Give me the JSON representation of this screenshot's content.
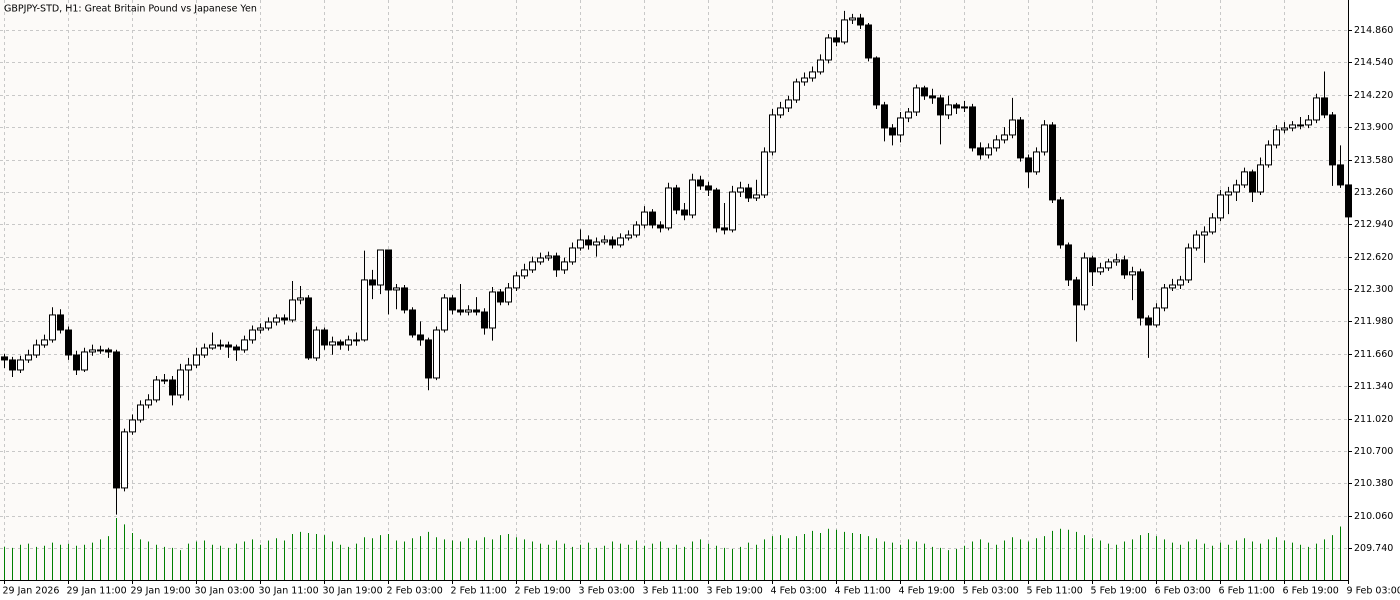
{
  "chart_data": {
    "type": "candlestick",
    "title": "GBPJPY-STD, H1:  Great Britain Pound vs Japanese Yen",
    "categories": [
      "29 Jan 2026",
      null,
      null,
      null,
      null,
      null,
      null,
      null,
      "29 Jan 11:00",
      null,
      null,
      null,
      null,
      null,
      null,
      null,
      "29 Jan 19:00",
      null,
      null,
      null,
      null,
      null,
      null,
      null,
      "30 Jan 03:00",
      null,
      null,
      null,
      null,
      null,
      null,
      null,
      "30 Jan 11:00",
      null,
      null,
      null,
      null,
      null,
      null,
      null,
      "30 Jan 19:00",
      null,
      null,
      null,
      null,
      null,
      null,
      null,
      "2 Feb 03:00",
      null,
      null,
      null,
      null,
      null,
      null,
      null,
      "2 Feb 11:00",
      null,
      null,
      null,
      null,
      null,
      null,
      null,
      "2 Feb 19:00",
      null,
      null,
      null,
      null,
      null,
      null,
      null,
      "3 Feb 03:00",
      null,
      null,
      null,
      null,
      null,
      null,
      null,
      "3 Feb 11:00",
      null,
      null,
      null,
      null,
      null,
      null,
      null,
      "3 Feb 19:00",
      null,
      null,
      null,
      null,
      null,
      null,
      null,
      "4 Feb 03:00",
      null,
      null,
      null,
      null,
      null,
      null,
      null,
      "4 Feb 11:00",
      null,
      null,
      null,
      null,
      null,
      null,
      null,
      "4 Feb 19:00",
      null,
      null,
      null,
      null,
      null,
      null,
      null,
      "5 Feb 03:00",
      null,
      null,
      null,
      null,
      null,
      null,
      null,
      "5 Feb 11:00",
      null,
      null,
      null,
      null,
      null,
      null,
      null,
      "5 Feb 19:00",
      null,
      null,
      null,
      null,
      null,
      null,
      null,
      "6 Feb 03:00",
      null,
      null,
      null,
      null,
      null,
      null,
      null,
      "6 Feb 11:00",
      null,
      null,
      null,
      null,
      null,
      null,
      null,
      "6 Feb 19:00",
      null,
      null,
      null,
      null,
      null,
      null,
      null,
      "9 Feb 03:00"
    ],
    "open": [
      211.629,
      211.599,
      211.5,
      211.599,
      211.648,
      211.747,
      211.797,
      212.044,
      211.895,
      211.648,
      211.5,
      211.678,
      211.698,
      211.698,
      211.678,
      210.334,
      210.888,
      211.006,
      211.154,
      211.204,
      211.401,
      211.401,
      211.253,
      211.5,
      211.549,
      211.648,
      211.717,
      211.747,
      211.747,
      211.727,
      211.698,
      211.797,
      211.895,
      211.915,
      211.974,
      212.014,
      211.994,
      212.192,
      212.212,
      211.619,
      211.895,
      211.747,
      211.777,
      211.747,
      211.797,
      211.797,
      212.39,
      212.34,
      212.686,
      212.291,
      212.311,
      212.093,
      211.846,
      211.797,
      211.421,
      211.895,
      212.212,
      212.093,
      212.073,
      212.093,
      212.073,
      211.915,
      212.271,
      212.172,
      212.311,
      212.43,
      212.489,
      212.568,
      212.607,
      212.627,
      212.489,
      212.568,
      212.706,
      212.785,
      212.736,
      212.765,
      212.785,
      212.736,
      212.805,
      212.834,
      212.933,
      213.061,
      212.933,
      212.904,
      213.299,
      213.081,
      213.032,
      213.378,
      213.319,
      213.279,
      212.904,
      212.884,
      213.259,
      213.299,
      213.2,
      213.23,
      213.655,
      214.021,
      214.09,
      214.169,
      214.347,
      214.386,
      214.446,
      214.564,
      214.782,
      214.742,
      214.96,
      214.979,
      214.91,
      214.584,
      214.12,
      213.892,
      213.823,
      213.991,
      214.05,
      214.288,
      214.209,
      214.189,
      214.021,
      214.12,
      214.09,
      214.1,
      213.695,
      213.626,
      213.695,
      213.774,
      213.823,
      213.971,
      213.596,
      213.458,
      213.655,
      213.922,
      213.181,
      212.736,
      212.39,
      212.143,
      212.607,
      212.47,
      212.509,
      212.568,
      212.588,
      212.44,
      212.47,
      212.014,
      211.945,
      212.113,
      212.311,
      212.34,
      212.39,
      212.706,
      212.834,
      212.864,
      213.003,
      213.23,
      213.259,
      213.329,
      213.458,
      213.259,
      213.527,
      213.724,
      213.873,
      213.892,
      213.922,
      213.922,
      213.971,
      214.189,
      214.021,
      213.527,
      213.329
    ],
    "high": [
      211.66,
      211.63,
      211.64,
      211.7,
      211.8,
      211.85,
      212.12,
      212.1,
      211.93,
      211.69,
      211.72,
      211.75,
      211.74,
      211.72,
      211.7,
      210.92,
      211.06,
      211.2,
      211.26,
      211.44,
      211.46,
      211.44,
      211.56,
      211.62,
      211.72,
      211.76,
      211.87,
      211.8,
      211.78,
      211.75,
      211.84,
      211.94,
      211.96,
      212.02,
      212.05,
      212.05,
      212.38,
      212.33,
      212.24,
      211.93,
      211.92,
      211.83,
      211.8,
      211.84,
      211.87,
      212.68,
      212.49,
      212.69,
      212.69,
      212.35,
      212.34,
      212.12,
      211.98,
      211.82,
      211.93,
      212.25,
      212.24,
      212.35,
      212.14,
      212.22,
      212.11,
      212.32,
      212.3,
      212.36,
      212.47,
      212.55,
      212.62,
      212.66,
      212.67,
      212.66,
      212.61,
      212.76,
      212.89,
      212.83,
      212.81,
      212.83,
      212.82,
      212.85,
      212.88,
      212.97,
      213.12,
      213.09,
      212.97,
      213.35,
      213.33,
      213.15,
      213.44,
      213.42,
      213.36,
      213.3,
      213.15,
      213.32,
      213.36,
      213.34,
      213.38,
      213.7,
      214.08,
      214.15,
      214.21,
      214.38,
      214.44,
      214.5,
      214.62,
      214.82,
      214.86,
      215.05,
      215.02,
      215.02,
      214.93,
      214.6,
      214.15,
      213.93,
      214.05,
      214.09,
      214.32,
      214.31,
      214.28,
      214.22,
      214.21,
      214.14,
      214.16,
      214.13,
      213.75,
      213.74,
      213.82,
      213.9,
      214.19,
      214,
      213.63,
      213.7,
      213.97,
      213.95,
      213.21,
      212.76,
      212.42,
      212.66,
      212.63,
      212.56,
      212.6,
      212.65,
      212.63,
      212.52,
      212.5,
      212.04,
      212.16,
      212.35,
      212.4,
      212.43,
      212.75,
      212.88,
      212.92,
      213.05,
      213.28,
      213.31,
      213.38,
      213.5,
      213.48,
      213.6,
      213.77,
      213.92,
      213.95,
      213.96,
      214,
      214.02,
      214.23,
      214.45,
      214.05,
      213.72,
      213.36
    ],
    "low": [
      211.52,
      211.43,
      211.47,
      211.57,
      211.62,
      211.72,
      211.77,
      211.86,
      211.6,
      211.45,
      211.48,
      211.64,
      211.66,
      211.62,
      210.07,
      210.3,
      210.86,
      210.98,
      211.12,
      211.18,
      211.36,
      211.15,
      211.22,
      211.2,
      211.52,
      211.62,
      211.7,
      211.7,
      211.62,
      211.59,
      211.67,
      211.76,
      211.86,
      211.89,
      211.94,
      211.95,
      211.97,
      212.15,
      211.6,
      211.59,
      211.7,
      211.65,
      211.7,
      211.69,
      211.74,
      211.78,
      212.2,
      212.25,
      212.05,
      212.1,
      212.06,
      211.82,
      211.74,
      211.3,
      211.4,
      211.87,
      212.05,
      212.04,
      212.04,
      212.04,
      211.85,
      211.79,
      212.14,
      212.14,
      212.28,
      212.4,
      212.46,
      212.54,
      212.58,
      212.42,
      212.45,
      212.54,
      212.68,
      212.69,
      212.62,
      212.74,
      212.7,
      212.71,
      212.78,
      212.81,
      212.9,
      212.9,
      212.86,
      212.88,
      213.04,
      212.98,
      213,
      213.28,
      213.22,
      212.86,
      212.84,
      212.86,
      213.21,
      213.16,
      213.17,
      213.2,
      213.62,
      213.99,
      214.05,
      214.14,
      214.31,
      214.35,
      214.42,
      214.53,
      214.7,
      214.72,
      214.92,
      214.87,
      214.55,
      214.08,
      213.76,
      213.72,
      213.75,
      213.95,
      214.01,
      214.17,
      214.13,
      213.73,
      213.98,
      214.03,
      214.05,
      213.66,
      213.58,
      213.59,
      213.66,
      213.74,
      213.79,
      213.56,
      213.3,
      213.43,
      213.62,
      213.15,
      212.7,
      212.33,
      211.78,
      212.09,
      212.33,
      212.44,
      212.48,
      212.53,
      212.4,
      212.19,
      211.94,
      211.62,
      211.92,
      212.08,
      212.28,
      212.3,
      212.36,
      212.68,
      212.56,
      212.84,
      212.97,
      213.04,
      213.17,
      213.3,
      213.16,
      213.23,
      213.5,
      213.69,
      213.84,
      213.86,
      213.88,
      213.89,
      213.94,
      213.99,
      213.32,
      213.3,
      212.98
    ],
    "close": [
      211.599,
      211.5,
      211.599,
      211.648,
      211.747,
      211.797,
      212.044,
      211.895,
      211.648,
      211.5,
      211.678,
      211.698,
      211.698,
      211.678,
      210.334,
      210.888,
      211.006,
      211.154,
      211.204,
      211.401,
      211.401,
      211.253,
      211.5,
      211.549,
      211.648,
      211.717,
      211.747,
      211.747,
      211.727,
      211.698,
      211.797,
      211.895,
      211.915,
      211.974,
      212.014,
      211.994,
      212.192,
      212.212,
      211.619,
      211.895,
      211.747,
      211.777,
      211.747,
      211.797,
      211.797,
      212.39,
      212.34,
      212.686,
      212.291,
      212.311,
      212.093,
      211.846,
      211.797,
      211.421,
      211.895,
      212.212,
      212.093,
      212.073,
      212.093,
      212.073,
      211.915,
      212.271,
      212.172,
      212.311,
      212.43,
      212.489,
      212.568,
      212.607,
      212.627,
      212.489,
      212.568,
      212.706,
      212.785,
      212.736,
      212.765,
      212.785,
      212.736,
      212.805,
      212.834,
      212.933,
      213.061,
      212.933,
      212.904,
      213.299,
      213.081,
      213.032,
      213.378,
      213.319,
      213.279,
      212.904,
      212.884,
      213.259,
      213.299,
      213.2,
      213.23,
      213.655,
      214.021,
      214.09,
      214.169,
      214.347,
      214.386,
      214.446,
      214.564,
      214.782,
      214.742,
      214.96,
      214.979,
      214.91,
      214.584,
      214.12,
      213.892,
      213.823,
      213.991,
      214.05,
      214.288,
      214.209,
      214.189,
      214.021,
      214.12,
      214.09,
      214.1,
      213.695,
      213.626,
      213.695,
      213.774,
      213.823,
      213.971,
      213.596,
      213.458,
      213.655,
      213.922,
      213.181,
      212.736,
      212.39,
      212.143,
      212.607,
      212.47,
      212.509,
      212.568,
      212.588,
      212.44,
      212.47,
      212.014,
      211.945,
      212.113,
      212.311,
      212.34,
      212.39,
      212.706,
      212.834,
      212.864,
      213.003,
      213.23,
      213.259,
      213.329,
      213.458,
      213.259,
      213.527,
      213.724,
      213.873,
      213.892,
      213.922,
      213.922,
      213.971,
      214.189,
      214.021,
      213.527,
      213.329,
      213.013
    ],
    "volume": [
      3100,
      3000,
      3300,
      3400,
      3100,
      3200,
      3500,
      3300,
      3400,
      3200,
      3300,
      3500,
      3800,
      4100,
      5800,
      5200,
      4400,
      3800,
      3600,
      3300,
      3100,
      3000,
      2800,
      3400,
      3600,
      3700,
      3300,
      3200,
      3000,
      3400,
      3600,
      3800,
      3300,
      3700,
      3900,
      3700,
      4300,
      4500,
      4400,
      4300,
      4200,
      3600,
      3300,
      3100,
      3400,
      4000,
      3900,
      4200,
      4300,
      3700,
      3600,
      3900,
      4100,
      4500,
      4000,
      3800,
      3700,
      3600,
      3900,
      3700,
      4000,
      3800,
      4200,
      4300,
      4000,
      3800,
      3600,
      3400,
      3300,
      3700,
      3400,
      3100,
      3300,
      3500,
      3000,
      3200,
      3600,
      3400,
      3300,
      3700,
      3200,
      3400,
      3600,
      3000,
      3300,
      3100,
      3600,
      3800,
      3400,
      3200,
      3000,
      2900,
      3100,
      3500,
      3300,
      3800,
      4100,
      4200,
      3900,
      4100,
      4300,
      4600,
      4400,
      4800,
      4700,
      4500,
      4400,
      4300,
      4100,
      3900,
      3600,
      3500,
      3300,
      3800,
      3600,
      3400,
      3100,
      3000,
      2800,
      2900,
      3200,
      3600,
      3800,
      3500,
      3300,
      3700,
      4000,
      3800,
      3600,
      3900,
      4100,
      4600,
      4800,
      4700,
      4500,
      4200,
      3900,
      3700,
      3400,
      3300,
      3600,
      3800,
      4200,
      4400,
      4100,
      3800,
      3500,
      3300,
      3600,
      3800,
      3400,
      3200,
      3500,
      3300,
      3700,
      3900,
      3600,
      3400,
      3800,
      4000,
      3700,
      3500,
      3300,
      3100,
      3400,
      3800,
      4200,
      5000,
      4900
    ],
    "ylim": [
      209.424,
      215.157
    ],
    "yticks": [
      {
        "value": 214.86,
        "label": "214.860"
      },
      {
        "value": 214.54,
        "label": "214.540"
      },
      {
        "value": 214.22,
        "label": "214.220"
      },
      {
        "value": 213.9,
        "label": "213.900"
      },
      {
        "value": 213.58,
        "label": "213.580"
      },
      {
        "value": 213.26,
        "label": "213.260"
      },
      {
        "value": 212.94,
        "label": "212.940"
      },
      {
        "value": 212.62,
        "label": "212.620"
      },
      {
        "value": 212.3,
        "label": "212.300"
      },
      {
        "value": 211.98,
        "label": "211.980"
      },
      {
        "value": 211.66,
        "label": "211.660"
      },
      {
        "value": 211.34,
        "label": "211.340"
      },
      {
        "value": 211.02,
        "label": "211.020"
      },
      {
        "value": 210.7,
        "label": "210.700"
      },
      {
        "value": 210.38,
        "label": "210.380"
      },
      {
        "value": 210.06,
        "label": "210.060"
      },
      {
        "value": 209.74,
        "label": "209.740"
      }
    ],
    "grid": true,
    "up_color": "#ffffff",
    "down_color": "#000000",
    "volume_color": "#008000"
  }
}
